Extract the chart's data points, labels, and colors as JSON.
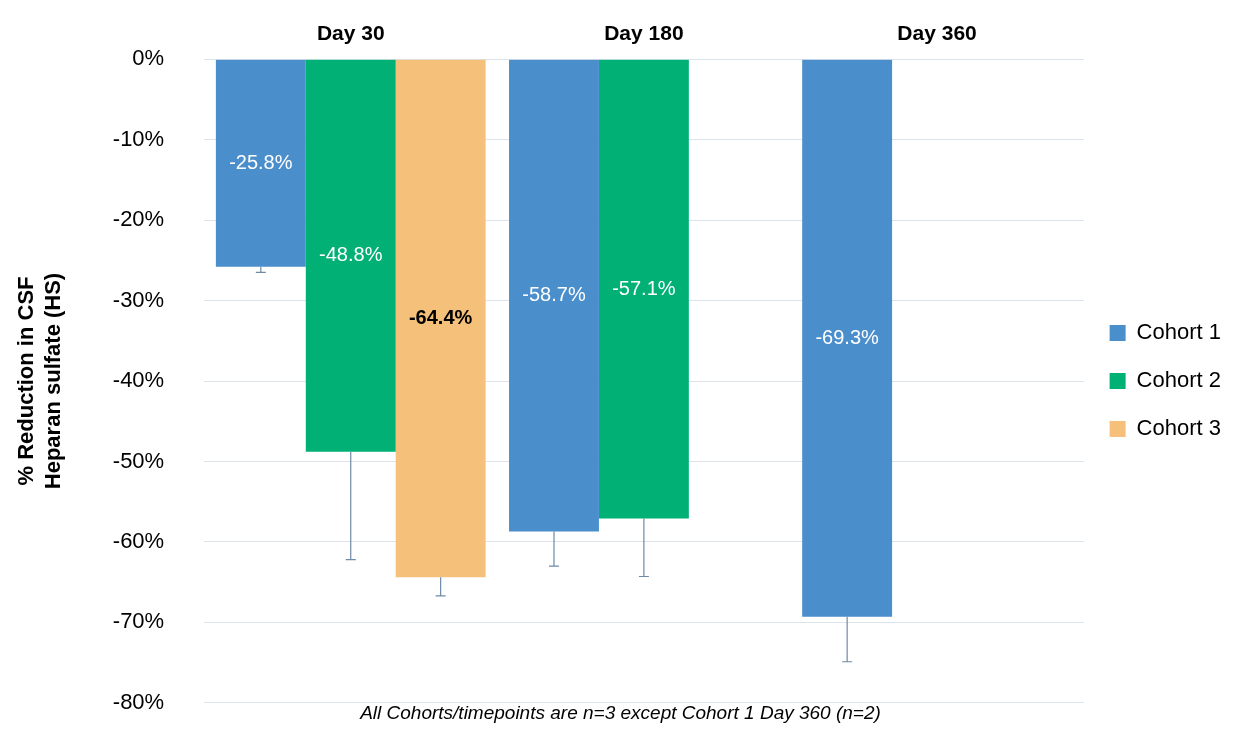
{
  "chart_data": {
    "type": "bar",
    "ylabel": "% Reduction in CSF\nHeparan sulfate (HS)",
    "categories": [
      "Day 30",
      "Day 180",
      "Day 360"
    ],
    "series": [
      {
        "name": "Cohort 1",
        "color": "#4a8ecc",
        "values": [
          -25.8,
          -58.7,
          -69.3
        ],
        "value_labels": [
          "-25.8%",
          "-58.7%",
          "-69.3%"
        ],
        "errors": [
          [
            -26.5,
            -25.8
          ],
          [
            -63.0,
            -58.7
          ],
          [
            -74.9,
            -69.3
          ]
        ]
      },
      {
        "name": "Cohort 2",
        "color": "#00b074",
        "values": [
          -48.8,
          -57.1,
          null
        ],
        "value_labels": [
          "-48.8%",
          "-57.1%",
          null
        ],
        "errors": [
          [
            -62.2,
            -48.8
          ],
          [
            -64.3,
            -57.1
          ],
          null
        ]
      },
      {
        "name": "Cohort 3",
        "color": "#f5c07a",
        "values": [
          -64.4,
          null,
          null
        ],
        "value_labels": [
          "-64.4%",
          null,
          null
        ],
        "errors": [
          [
            -66.7,
            -64.4
          ],
          null,
          null
        ]
      }
    ],
    "ylim": [
      -80,
      0
    ],
    "yticks": [
      {
        "value": 0,
        "label": "0%"
      },
      {
        "value": -10,
        "label": "-10%"
      },
      {
        "value": -20,
        "label": "-20%"
      },
      {
        "value": -30,
        "label": "-30%"
      },
      {
        "value": -40,
        "label": "-40%"
      },
      {
        "value": -50,
        "label": "-50%"
      },
      {
        "value": -60,
        "label": "-60%"
      },
      {
        "value": -70,
        "label": "-70%"
      },
      {
        "value": -80,
        "label": "-80%"
      }
    ],
    "grid": "y",
    "legend": "right",
    "annotations": [
      "All Cohorts/timepoints are n=3 except Cohort 1 Day 360 (n=2)"
    ]
  }
}
